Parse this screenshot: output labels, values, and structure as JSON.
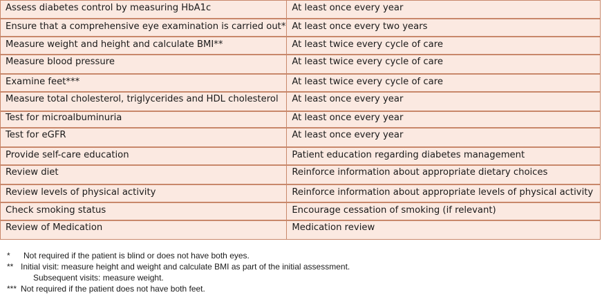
{
  "care_table": {
    "rows": [
      {
        "activity": "Assess diabetes control by measuring HbA1c",
        "frequency": "At least once every year"
      },
      {
        "activity": "Ensure that a comprehensive eye examination is carried out*",
        "frequency": "At least once every two years"
      },
      {
        "activity": "Measure weight and height and calculate BMI**",
        "frequency": "At least twice every cycle of care"
      },
      {
        "activity": "Measure blood pressure",
        "frequency": "At least twice every cycle of care"
      },
      {
        "activity": "Examine feet***",
        "frequency": "At least twice every cycle of care"
      },
      {
        "activity": "Measure total cholesterol, triglycerides and HDL cholesterol",
        "frequency": "At least once every year"
      },
      {
        "activity": "Test for microalbuminuria",
        "frequency": "At least once every year"
      },
      {
        "activity": "Test for eGFR",
        "frequency": "At least once every year"
      },
      {
        "activity": "Provide self-care education",
        "frequency": "Patient education regarding diabetes management"
      },
      {
        "activity": "Review diet",
        "frequency": "Reinforce information about appropriate dietary choices"
      },
      {
        "activity": "Review levels of physical activity",
        "frequency": "Reinforce information about appropriate levels of physical activity"
      },
      {
        "activity": "Check smoking status",
        "frequency": "Encourage cessation of smoking (if relevant)"
      },
      {
        "activity": "Review of Medication",
        "frequency": "Medication review"
      }
    ]
  },
  "footnotes": {
    "fn1_mark": "*",
    "fn1_text": "Not required if the patient is blind or does not have both eyes.",
    "fn2_mark": "**",
    "fn2_text": "Initial visit: measure height and weight and calculate BMI  as part of the initial assessment.",
    "fn2_cont": "Subsequent visits: measure weight.",
    "fn3_mark": "***",
    "fn3_text": "Not required if the patient does not have both feet."
  }
}
